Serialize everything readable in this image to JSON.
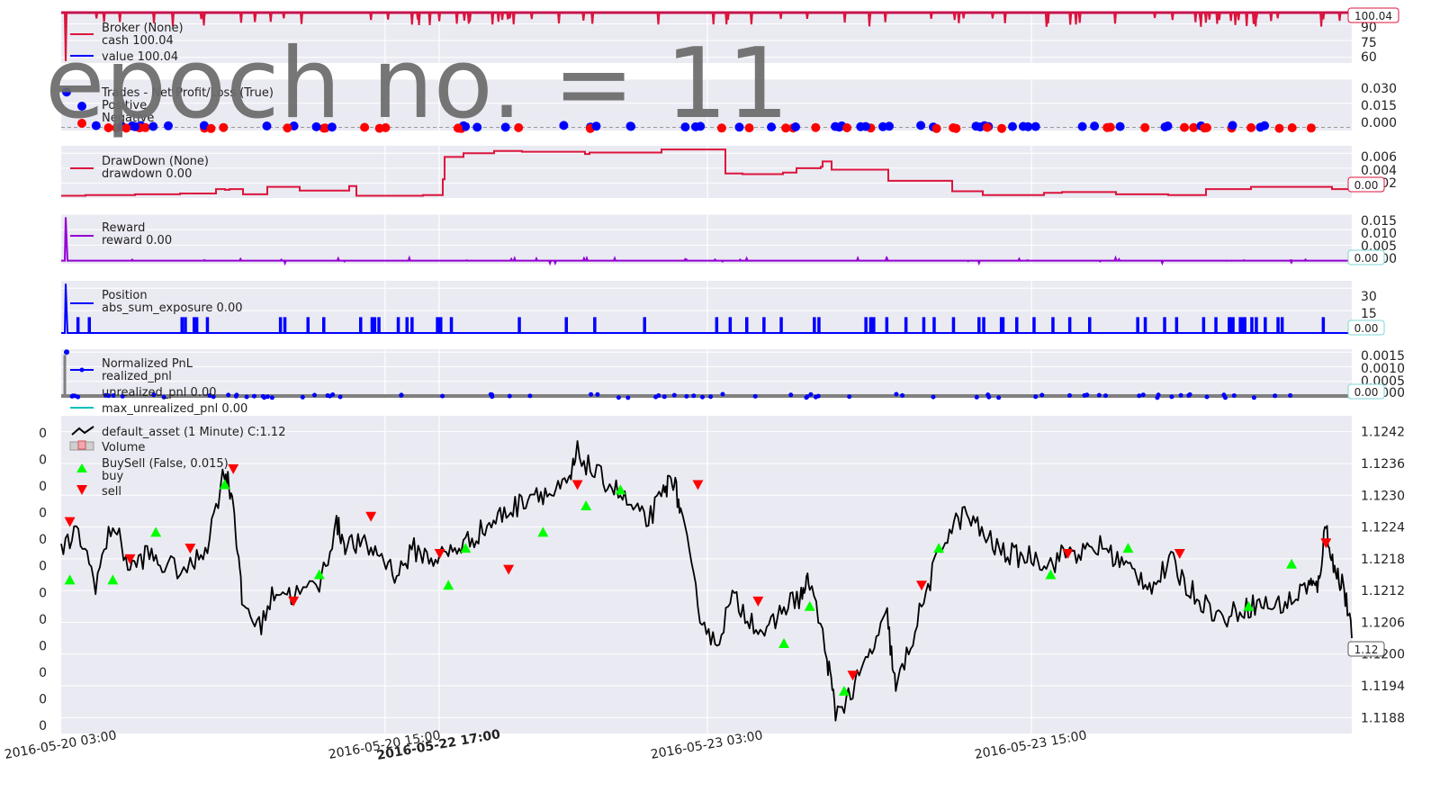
{
  "overlay": {
    "epoch_label": "epoch no. = 11"
  },
  "chart_data": {
    "type": "line",
    "x_ticks": [
      "2016-05-20 03:00",
      "2016-05-20 15:00",
      "2016-05-22 17:00",
      "2016-05-23 03:00",
      "2016-05-23 15:00"
    ],
    "x_ticks_bold": [
      false,
      false,
      true,
      false,
      false
    ],
    "colors": {
      "cash": "#dc143c",
      "value": "#0000ff",
      "positive": "#0000ff",
      "negative": "#ff0000",
      "drawdown": "#dc143c",
      "reward": "#9400d3",
      "position": "#0000ff",
      "realized_pnl": "#0000ff",
      "unrealized_pnl": "#808080",
      "max_unrealized_pnl": "#00bfbf",
      "price": "#000000",
      "buy": "#00ff00",
      "sell": "#ff0000",
      "panel_bg": "#eaeaf2"
    },
    "panels": [
      {
        "id": "broker",
        "legend": [
          "Broker (None)",
          "cash 100.04",
          "value 100.04"
        ],
        "yticks": [
          "90",
          "75",
          "60"
        ],
        "last_value": "100.04",
        "ylim": [
          55,
          100.04
        ]
      },
      {
        "id": "trades",
        "legend": [
          "Trades - Net Profit/Loss (True)",
          "Positive",
          "Negative"
        ],
        "yticks": [
          "0.030",
          "0.015",
          "0.000"
        ],
        "ylim": [
          -0.002,
          0.03
        ]
      },
      {
        "id": "drawdown",
        "legend": [
          "DrawDown (None)",
          "drawdown 0.00"
        ],
        "yticks": [
          "0.006",
          "0.004",
          "0.002"
        ],
        "last_value": "0.00",
        "ylim": [
          0,
          0.007
        ]
      },
      {
        "id": "reward",
        "legend": [
          "Reward",
          "reward 0.00"
        ],
        "yticks": [
          "0.015",
          "0.010",
          "0.005",
          "0.000"
        ],
        "last_value": "0.00",
        "ylim": [
          -0.001,
          0.015
        ]
      },
      {
        "id": "position",
        "legend": [
          "Position",
          "abs_sum_exposure 0.00"
        ],
        "yticks": [
          "30",
          "15"
        ],
        "last_value": "0.00",
        "ylim": [
          0,
          35
        ]
      },
      {
        "id": "pnl",
        "legend": [
          "Normalized PnL",
          "realized_pnl",
          "unrealized_pnl 0.00",
          "max_unrealized_pnl 0.00"
        ],
        "yticks": [
          "0.0015",
          "0.0010",
          "0.0005",
          "0.0000"
        ],
        "last_value": "0.00",
        "ylim": [
          0,
          0.0016
        ]
      },
      {
        "id": "price",
        "legend": [
          "default_asset (1 Minute) C:1.12",
          "Volume",
          "BuySell (False, 0.015)",
          "buy",
          "sell"
        ],
        "yticks": [
          "1.1242",
          "1.1236",
          "1.1230",
          "1.1224",
          "1.1218",
          "1.1212",
          "1.1206",
          "1.1200",
          "1.1194",
          "1.1188"
        ],
        "volume_ticks": [
          "0",
          "0",
          "0",
          "0",
          "0",
          "0",
          "0",
          "0",
          "0",
          "0",
          "0",
          "0"
        ],
        "last_value": "1.12",
        "ylim": [
          1.1185,
          1.1245
        ]
      }
    ],
    "price_series": [
      [
        0,
        1.12195
      ],
      [
        0.02,
        1.1223
      ],
      [
        0.04,
        1.12135
      ],
      [
        0.06,
        1.1225
      ],
      [
        0.08,
        1.1216
      ],
      [
        0.1,
        1.1219
      ],
      [
        0.12,
        1.12165
      ],
      [
        0.15,
        1.1216
      ],
      [
        0.17,
        1.1221
      ],
      [
        0.19,
        1.1235
      ],
      [
        0.2,
        1.1229
      ],
      [
        0.21,
        1.121
      ],
      [
        0.23,
        1.1205
      ],
      [
        0.25,
        1.12125
      ],
      [
        0.27,
        1.1211
      ],
      [
        0.3,
        1.1213
      ],
      [
        0.32,
        1.12245
      ],
      [
        0.33,
        1.1221
      ],
      [
        0.35,
        1.12205
      ],
      [
        0.37,
        1.1219
      ],
      [
        0.39,
        1.1215
      ],
      [
        0.41,
        1.12198
      ],
      [
        0.43,
        1.1218
      ],
      [
        0.45,
        1.1219
      ],
      [
        0.47,
        1.1221
      ],
      [
        0.49,
        1.12235
      ],
      [
        0.51,
        1.1226
      ],
      [
        0.53,
        1.1228
      ],
      [
        0.55,
        1.1231
      ],
      [
        0.57,
        1.123
      ],
      [
        0.59,
        1.1232
      ],
      [
        0.6,
        1.1238
      ],
      [
        0.62,
        1.1234
      ],
      [
        0.64,
        1.1232
      ],
      [
        0.66,
        1.1228
      ],
      [
        0.68,
        1.1225
      ],
      [
        0.7,
        1.123
      ],
      [
        0.71,
        1.1234
      ],
      [
        0.72,
        1.1227
      ],
      [
        0.74,
        1.1209
      ],
      [
        0.76,
        1.12015
      ],
      [
        0.78,
        1.12105
      ],
      [
        0.8,
        1.1207
      ],
      [
        0.82,
        1.12035
      ],
      [
        0.84,
        1.1209
      ],
      [
        0.86,
        1.1211
      ],
      [
        0.87,
        1.1214
      ],
      [
        0.89,
        1.11995
      ],
      [
        0.9,
        1.1189
      ],
      [
        0.92,
        1.1193
      ],
      [
        0.94,
        1.12
      ],
      [
        0.96,
        1.1207
      ],
      [
        0.97,
        1.1193
      ],
      [
        0.99,
        1.12035
      ],
      [
        1.01,
        1.1214
      ],
      [
        1.03,
        1.1223
      ],
      [
        1.05,
        1.12265
      ],
      [
        1.07,
        1.1223
      ],
      [
        1.09,
        1.12195
      ],
      [
        1.11,
        1.12185
      ],
      [
        1.13,
        1.12185
      ],
      [
        1.15,
        1.1217
      ],
      [
        1.17,
        1.12195
      ],
      [
        1.19,
        1.1219
      ],
      [
        1.21,
        1.12205
      ],
      [
        1.23,
        1.12175
      ],
      [
        1.25,
        1.1215
      ],
      [
        1.27,
        1.1213
      ],
      [
        1.29,
        1.12175
      ],
      [
        1.31,
        1.12125
      ],
      [
        1.33,
        1.12095
      ],
      [
        1.35,
        1.12065
      ],
      [
        1.37,
        1.12085
      ],
      [
        1.39,
        1.12095
      ],
      [
        1.41,
        1.1209
      ],
      [
        1.43,
        1.121
      ],
      [
        1.45,
        1.12135
      ],
      [
        1.46,
        1.1212
      ],
      [
        1.47,
        1.12245
      ],
      [
        1.48,
        1.12155
      ],
      [
        1.49,
        1.12135
      ],
      [
        1.5,
        1.1203
      ]
    ],
    "buy_markers": [
      [
        0.01,
        1.1214
      ],
      [
        0.06,
        1.1214
      ],
      [
        0.11,
        1.1223
      ],
      [
        0.19,
        1.1232
      ],
      [
        0.3,
        1.1215
      ],
      [
        0.45,
        1.1213
      ],
      [
        0.47,
        1.122
      ],
      [
        0.56,
        1.1223
      ],
      [
        0.61,
        1.1228
      ],
      [
        0.65,
        1.1231
      ],
      [
        0.84,
        1.1202
      ],
      [
        0.87,
        1.1209
      ],
      [
        0.91,
        1.1193
      ],
      [
        1.02,
        1.122
      ],
      [
        1.15,
        1.1215
      ],
      [
        1.24,
        1.122
      ],
      [
        1.38,
        1.1209
      ],
      [
        1.43,
        1.1217
      ]
    ],
    "sell_markers": [
      [
        0.01,
        1.1225
      ],
      [
        0.08,
        1.1218
      ],
      [
        0.15,
        1.122
      ],
      [
        0.2,
        1.1235
      ],
      [
        0.27,
        1.121
      ],
      [
        0.36,
        1.1226
      ],
      [
        0.44,
        1.1219
      ],
      [
        0.52,
        1.1216
      ],
      [
        0.6,
        1.1232
      ],
      [
        0.74,
        1.1232
      ],
      [
        0.81,
        1.121
      ],
      [
        0.92,
        1.1196
      ],
      [
        1.0,
        1.1213
      ],
      [
        1.17,
        1.1219
      ],
      [
        1.3,
        1.1219
      ],
      [
        1.47,
        1.1221
      ]
    ]
  }
}
